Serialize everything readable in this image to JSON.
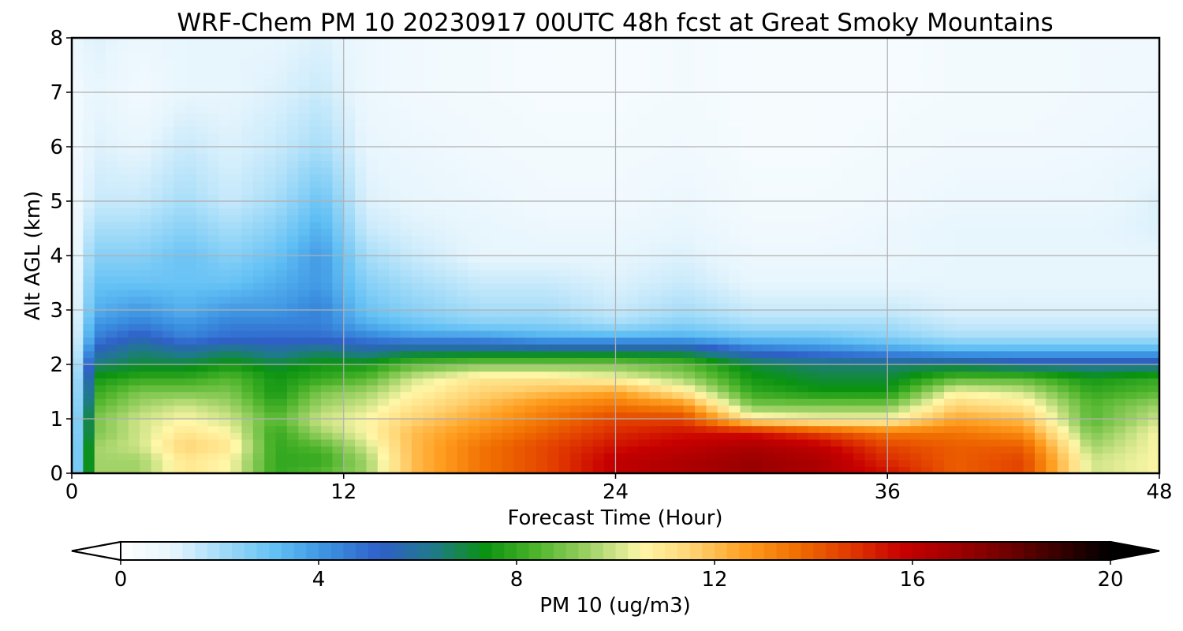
{
  "chart_data": {
    "type": "heatmap",
    "title": "WRF-Chem PM 10  20230917 00UTC 48h fcst at Great Smoky Mountains",
    "xlabel": "Forecast Time (Hour)",
    "ylabel": "Alt AGL (km)",
    "xlim": [
      0,
      48
    ],
    "ylim": [
      0,
      8
    ],
    "xticks": [
      0,
      12,
      24,
      36,
      48
    ],
    "yticks": [
      0,
      1,
      2,
      3,
      4,
      5,
      6,
      7,
      8
    ],
    "grid": true,
    "colorbar": {
      "label": "PM 10  (ug/m3)",
      "ticks": [
        0,
        4,
        8,
        12,
        16,
        20
      ],
      "range": [
        0,
        20
      ],
      "extend": "both",
      "colors": [
        "#ffffff",
        "#e6f5fd",
        "#9fdaf8",
        "#60bff4",
        "#3a8fe0",
        "#2f5fc8",
        "#1f7a8a",
        "#0a9310",
        "#4fb52c",
        "#9fd267",
        "#fff7a8",
        "#ffd271",
        "#ff9e1f",
        "#f06d00",
        "#e03800",
        "#c80000",
        "#a00000",
        "#700000",
        "#380000",
        "#000000"
      ]
    },
    "x": [
      0,
      1,
      3,
      5,
      7,
      9,
      11,
      13,
      15,
      18,
      21,
      24,
      27,
      30,
      33,
      36,
      39,
      42,
      45,
      48
    ],
    "y": [
      0,
      0.25,
      0.5,
      0.75,
      1.0,
      1.25,
      1.5,
      1.75,
      2.0,
      2.25,
      2.5,
      2.75,
      3.0,
      3.5,
      4.0,
      4.5,
      5.0,
      6.0,
      7.0,
      8.0
    ],
    "values": [
      [
        0.5,
        9.5,
        9.5,
        11.0,
        10.5,
        8.0,
        8.5,
        9.5,
        12.0,
        13.5,
        14.5,
        16.0,
        16.5,
        17.0,
        16.5,
        15.5,
        14.0,
        14.5,
        10.0,
        10.5
      ],
      [
        0.5,
        9.5,
        9.5,
        11.0,
        10.5,
        8.0,
        8.0,
        9.5,
        12.0,
        13.5,
        14.5,
        16.0,
        16.5,
        17.0,
        16.5,
        15.0,
        14.0,
        14.5,
        10.0,
        10.5
      ],
      [
        0.5,
        9.5,
        10.0,
        11.5,
        11.0,
        8.0,
        8.5,
        10.0,
        12.0,
        13.5,
        14.5,
        15.5,
        16.0,
        16.5,
        16.0,
        14.5,
        14.0,
        14.0,
        9.5,
        10.5
      ],
      [
        0.5,
        9.0,
        10.0,
        11.0,
        10.5,
        8.0,
        9.5,
        10.5,
        12.0,
        13.0,
        14.0,
        15.0,
        15.5,
        15.5,
        14.5,
        13.5,
        13.5,
        13.0,
        9.0,
        10.5
      ],
      [
        0.5,
        9.0,
        10.0,
        10.5,
        10.0,
        8.5,
        10.0,
        10.5,
        11.5,
        12.5,
        13.5,
        14.5,
        14.5,
        11.0,
        10.5,
        10.5,
        12.5,
        12.0,
        8.5,
        10.0
      ],
      [
        0.5,
        8.5,
        9.5,
        10.0,
        9.5,
        8.0,
        9.5,
        10.0,
        11.0,
        12.0,
        13.0,
        13.5,
        13.0,
        9.0,
        9.0,
        9.0,
        11.5,
        11.0,
        8.5,
        9.5
      ],
      [
        0.5,
        8.0,
        9.0,
        9.0,
        9.0,
        7.5,
        9.0,
        9.5,
        10.5,
        11.5,
        12.0,
        12.5,
        11.0,
        8.0,
        7.5,
        7.5,
        10.5,
        10.0,
        8.0,
        8.5
      ],
      [
        0.5,
        7.5,
        8.0,
        8.0,
        8.5,
        7.5,
        8.0,
        8.5,
        10.0,
        11.0,
        11.0,
        10.5,
        9.5,
        7.5,
        7.0,
        7.0,
        8.5,
        8.5,
        7.5,
        8.0
      ],
      [
        0.5,
        6.5,
        7.0,
        7.0,
        7.5,
        7.0,
        7.5,
        7.5,
        8.5,
        9.0,
        9.0,
        9.0,
        8.5,
        7.0,
        6.5,
        6.5,
        6.5,
        6.0,
        6.0,
        6.0
      ],
      [
        0.5,
        5.5,
        6.5,
        6.0,
        6.5,
        6.0,
        6.5,
        6.0,
        6.5,
        6.5,
        6.5,
        6.5,
        6.5,
        5.0,
        4.5,
        4.0,
        3.5,
        3.5,
        3.5,
        3.5
      ],
      [
        0.5,
        4.5,
        5.5,
        4.5,
        5.0,
        5.0,
        5.0,
        4.5,
        4.0,
        4.0,
        3.5,
        3.5,
        3.5,
        3.0,
        3.0,
        2.5,
        2.0,
        2.0,
        2.0,
        2.0
      ],
      [
        0.5,
        4.0,
        4.5,
        4.0,
        4.5,
        4.5,
        4.5,
        3.5,
        3.0,
        2.5,
        2.5,
        2.0,
        2.5,
        2.0,
        2.0,
        2.0,
        1.5,
        1.5,
        1.5,
        1.5
      ],
      [
        0.5,
        3.5,
        4.0,
        3.5,
        4.0,
        4.0,
        4.5,
        3.0,
        2.5,
        2.0,
        2.0,
        1.5,
        2.0,
        1.5,
        1.5,
        1.5,
        1.2,
        1.2,
        1.2,
        1.2
      ],
      [
        0.5,
        3.0,
        3.0,
        3.0,
        3.0,
        3.5,
        4.0,
        2.5,
        2.0,
        1.5,
        1.5,
        1.2,
        1.5,
        1.0,
        1.0,
        1.0,
        1.0,
        1.0,
        1.0,
        1.0
      ],
      [
        0.5,
        2.5,
        2.5,
        3.0,
        2.5,
        3.0,
        4.0,
        2.0,
        1.5,
        1.0,
        1.0,
        1.0,
        1.2,
        0.8,
        0.8,
        0.8,
        1.0,
        1.0,
        1.0,
        1.0
      ],
      [
        0.5,
        2.0,
        2.0,
        2.5,
        2.0,
        2.5,
        3.5,
        1.5,
        1.2,
        1.0,
        0.8,
        0.8,
        1.0,
        0.6,
        0.6,
        0.8,
        1.0,
        1.0,
        1.0,
        1.2
      ],
      [
        0.5,
        1.5,
        1.5,
        2.0,
        1.5,
        2.0,
        3.0,
        1.2,
        1.0,
        0.8,
        0.6,
        0.6,
        0.8,
        0.5,
        0.5,
        0.6,
        0.8,
        0.8,
        0.8,
        1.2
      ],
      [
        0.5,
        1.2,
        1.0,
        1.5,
        1.2,
        1.5,
        2.0,
        1.0,
        0.8,
        0.6,
        0.5,
        0.5,
        0.6,
        0.4,
        0.4,
        0.5,
        0.6,
        0.6,
        0.7,
        0.8
      ],
      [
        0.5,
        1.0,
        0.6,
        1.0,
        1.0,
        1.2,
        1.5,
        0.8,
        0.6,
        0.5,
        0.4,
        0.4,
        0.5,
        0.4,
        0.4,
        0.4,
        0.5,
        0.5,
        0.6,
        0.7
      ],
      [
        0.8,
        1.2,
        0.8,
        1.0,
        1.0,
        1.0,
        1.2,
        0.8,
        0.6,
        0.5,
        0.4,
        0.4,
        0.5,
        0.4,
        0.4,
        0.4,
        0.5,
        0.5,
        0.6,
        0.6
      ]
    ]
  }
}
